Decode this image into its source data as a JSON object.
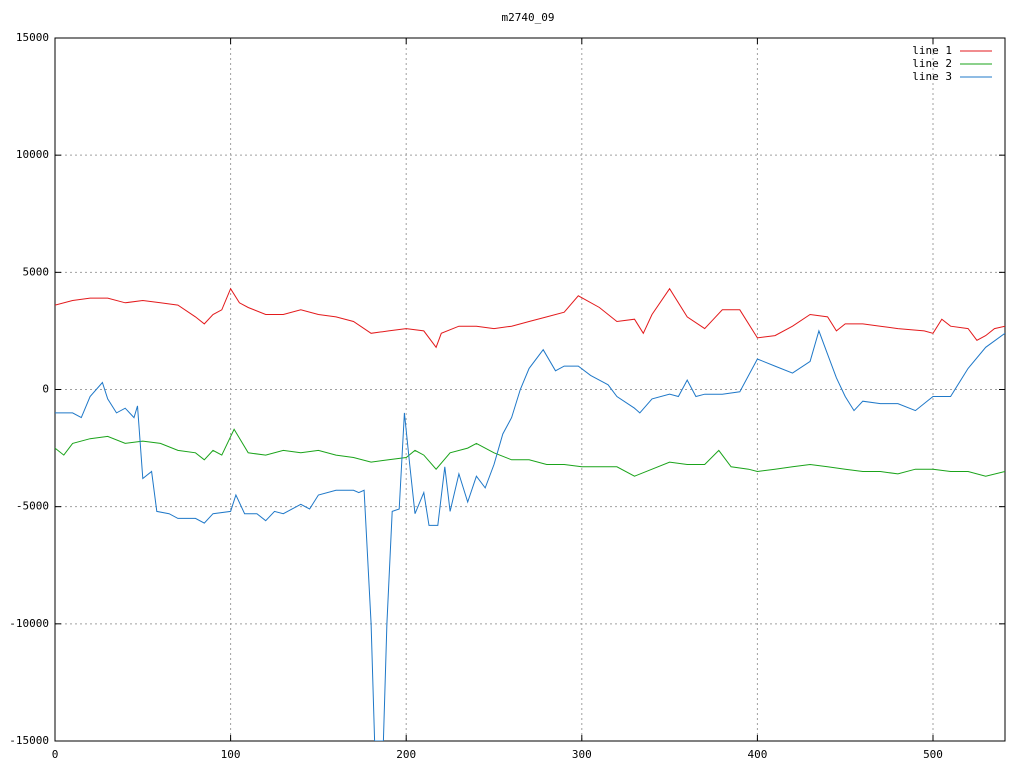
{
  "chart_data": {
    "type": "line",
    "title": "m2740_09",
    "xlim": [
      0,
      541
    ],
    "ylim": [
      -15000,
      15000
    ],
    "xticks": [
      0,
      100,
      200,
      300,
      400,
      500
    ],
    "yticks": [
      -15000,
      -10000,
      -5000,
      0,
      5000,
      10000,
      15000
    ],
    "grid": true,
    "legend": "top-right",
    "series": [
      {
        "name": "line 1",
        "color": "#e31a1c",
        "x": [
          0,
          10,
          20,
          30,
          40,
          50,
          60,
          70,
          80,
          85,
          90,
          95,
          100,
          105,
          110,
          120,
          130,
          140,
          150,
          160,
          170,
          180,
          190,
          200,
          210,
          217,
          220,
          230,
          240,
          250,
          260,
          270,
          280,
          290,
          298,
          310,
          320,
          330,
          335,
          340,
          350,
          360,
          370,
          375,
          380,
          390,
          400,
          410,
          420,
          430,
          440,
          445,
          450,
          460,
          470,
          480,
          495,
          500,
          505,
          510,
          520,
          525,
          530,
          535,
          541
        ],
        "values": [
          3600,
          3800,
          3900,
          3900,
          3700,
          3800,
          3700,
          3600,
          3100,
          2800,
          3200,
          3400,
          4300,
          3700,
          3500,
          3200,
          3200,
          3400,
          3200,
          3100,
          2900,
          2400,
          2500,
          2600,
          2500,
          1800,
          2400,
          2700,
          2700,
          2600,
          2700,
          2900,
          3100,
          3300,
          4000,
          3500,
          2900,
          3000,
          2400,
          3200,
          4300,
          3100,
          2600,
          3000,
          3400,
          3400,
          2200,
          2300,
          2700,
          3200,
          3100,
          2500,
          2800,
          2800,
          2700,
          2600,
          2500,
          2400,
          3000,
          2700,
          2600,
          2100,
          2300,
          2600,
          2700
        ]
      },
      {
        "name": "line 2",
        "color": "#1aa31a",
        "x": [
          0,
          5,
          10,
          20,
          30,
          40,
          50,
          60,
          70,
          80,
          85,
          90,
          95,
          102,
          110,
          120,
          130,
          140,
          150,
          160,
          170,
          180,
          190,
          200,
          205,
          210,
          217,
          225,
          235,
          240,
          250,
          260,
          270,
          280,
          290,
          300,
          310,
          320,
          330,
          340,
          350,
          360,
          370,
          378,
          385,
          395,
          400,
          410,
          420,
          430,
          440,
          450,
          460,
          470,
          480,
          490,
          500,
          510,
          520,
          530,
          541
        ],
        "values": [
          -2500,
          -2800,
          -2300,
          -2100,
          -2000,
          -2300,
          -2200,
          -2300,
          -2600,
          -2700,
          -3000,
          -2600,
          -2800,
          -1700,
          -2700,
          -2800,
          -2600,
          -2700,
          -2600,
          -2800,
          -2900,
          -3100,
          -3000,
          -2900,
          -2600,
          -2800,
          -3400,
          -2700,
          -2500,
          -2300,
          -2700,
          -3000,
          -3000,
          -3200,
          -3200,
          -3300,
          -3300,
          -3300,
          -3700,
          -3400,
          -3100,
          -3200,
          -3200,
          -2600,
          -3300,
          -3400,
          -3500,
          -3400,
          -3300,
          -3200,
          -3300,
          -3400,
          -3500,
          -3500,
          -3600,
          -3400,
          -3400,
          -3500,
          -3500,
          -3700,
          -3500
        ]
      },
      {
        "name": "line 3",
        "color": "#1f78c8",
        "x": [
          0,
          10,
          15,
          20,
          27,
          30,
          35,
          40,
          45,
          47,
          50,
          55,
          58,
          65,
          70,
          80,
          85,
          90,
          100,
          103,
          108,
          115,
          120,
          125,
          130,
          140,
          145,
          150,
          160,
          170,
          173,
          176,
          180,
          182,
          187,
          189,
          192,
          196,
          199,
          202,
          205,
          210,
          213,
          218,
          222,
          225,
          230,
          235,
          240,
          245,
          250,
          255,
          260,
          265,
          270,
          278,
          285,
          290,
          298,
          305,
          315,
          320,
          330,
          333,
          340,
          350,
          355,
          360,
          365,
          370,
          380,
          390,
          400,
          410,
          420,
          430,
          435,
          440,
          445,
          450,
          455,
          460,
          470,
          480,
          490,
          500,
          510,
          520,
          530,
          541
        ],
        "values": [
          -1000,
          -1000,
          -1200,
          -300,
          300,
          -400,
          -1000,
          -800,
          -1200,
          -700,
          -3800,
          -3500,
          -5200,
          -5300,
          -5500,
          -5500,
          -5700,
          -5300,
          -5200,
          -4500,
          -5300,
          -5300,
          -5600,
          -5200,
          -5300,
          -4900,
          -5100,
          -4500,
          -4300,
          -4300,
          -4400,
          -4300,
          -10000,
          -15000,
          -15000,
          -10000,
          -5200,
          -5100,
          -1000,
          -3200,
          -5300,
          -4400,
          -5800,
          -5800,
          -3300,
          -5200,
          -3600,
          -4800,
          -3700,
          -4200,
          -3200,
          -1900,
          -1200,
          0,
          900,
          1700,
          800,
          1000,
          1000,
          600,
          200,
          -300,
          -800,
          -1000,
          -400,
          -200,
          -300,
          400,
          -300,
          -200,
          -200,
          -100,
          1300,
          1000,
          700,
          1200,
          2500,
          1500,
          500,
          -300,
          -900,
          -500,
          -600,
          -600,
          -900,
          -300,
          -300,
          900,
          1800,
          2400
        ]
      }
    ]
  }
}
